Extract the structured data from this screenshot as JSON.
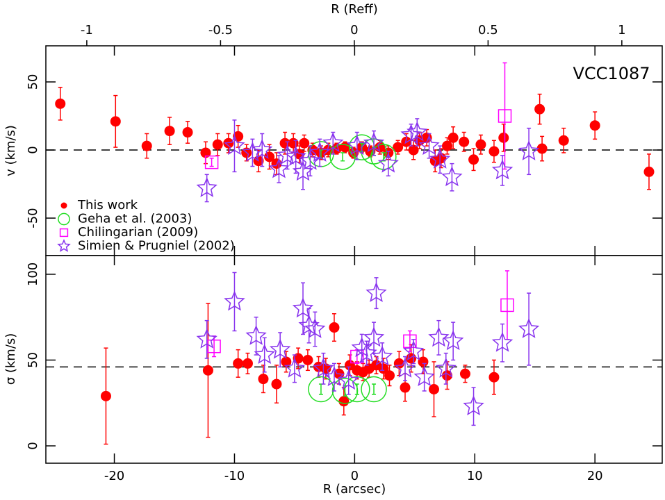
{
  "chart_data": [
    {
      "type": "scatter",
      "ylabel": "v (km/s)",
      "annotation": "VCC1087",
      "x2label": "R (Reff)",
      "x2lim": [
        -1.153,
        1.151
      ],
      "x2ticks": [
        -1,
        -0.5,
        0,
        0.5,
        1
      ],
      "xlim": [
        -25.7,
        25.6
      ],
      "ylim": [
        -77.5,
        76.5
      ],
      "yticks": [
        -50,
        0,
        50
      ],
      "hline": 0,
      "legend": "lower left",
      "series": [
        {
          "name": "This work",
          "color": "#ff0000",
          "marker": "filled-circle",
          "x": [
            -24.5,
            -19.9,
            -17.3,
            -15.4,
            -13.9,
            -12.4,
            -11.4,
            -10.5,
            -9.7,
            -9.0,
            -8.0,
            -7.1,
            -6.5,
            -5.8,
            -5.1,
            -4.6,
            -4.2,
            -3.5,
            -2.8,
            -2.2,
            -1.5,
            -0.8,
            -0.1,
            0.6,
            1.3,
            2.1,
            2.8,
            3.6,
            4.3,
            4.9,
            5.4,
            6.0,
            6.7,
            7.2,
            7.7,
            8.2,
            9.1,
            9.9,
            10.5,
            11.6,
            12.4,
            15.4,
            15.6,
            17.4,
            20.0,
            24.5
          ],
          "values": [
            34,
            21,
            3,
            14,
            13,
            -2,
            4,
            5,
            10,
            -2,
            -8,
            -5,
            -10,
            5,
            5,
            -3,
            5,
            0,
            -2,
            0,
            1,
            2,
            -2,
            2,
            -1,
            2,
            -2,
            2,
            6,
            0,
            7,
            9,
            -8,
            -6,
            3,
            9,
            6,
            -7,
            4,
            -1,
            9,
            30,
            1,
            7,
            18,
            -16
          ],
          "errors": [
            12,
            19,
            9,
            10,
            8,
            8,
            8,
            7,
            8,
            6,
            8,
            9,
            8,
            8,
            7,
            6,
            6,
            5,
            5,
            5,
            4,
            4,
            4,
            4,
            4,
            5,
            5,
            5,
            6,
            7,
            6,
            6,
            8,
            7,
            6,
            8,
            7,
            8,
            7,
            8,
            10,
            11,
            9,
            9,
            10,
            13
          ]
        },
        {
          "name": "Geha et al. (2003)",
          "color": "#22dd22",
          "marker": "open-circle",
          "x": [
            -2.8,
            -1.0,
            0.6,
            1.6,
            2.4
          ],
          "values": [
            -3,
            -5,
            2,
            -1,
            -5
          ],
          "errors": [
            3,
            3,
            3,
            3,
            3
          ]
        },
        {
          "name": "Chilingarian (2009)",
          "color": "#ff00ff",
          "marker": "open-square",
          "x": [
            -11.9,
            12.5
          ],
          "values": [
            -9,
            25
          ],
          "errors": [
            3,
            39
          ]
        },
        {
          "name": "Simien & Prugniel (2002)",
          "color": "#8833ee",
          "marker": "open-star",
          "x": [
            -12.3,
            -10.0,
            -8.5,
            -7.7,
            -6.3,
            -5.6,
            -4.9,
            -4.3,
            -3.7,
            -2.9,
            -1.8,
            0.2,
            1.6,
            2.8,
            4.7,
            5.2,
            6.2,
            7.1,
            8.1,
            12.3,
            14.5
          ],
          "values": [
            -28,
            3,
            -2,
            0,
            -14,
            -4,
            -5,
            -16,
            -8,
            -2,
            5,
            3,
            5,
            -10,
            11,
            13,
            3,
            -7,
            -20,
            -15,
            -1
          ],
          "errors": [
            10,
            19,
            10,
            12,
            10,
            10,
            12,
            13,
            11,
            10,
            8,
            10,
            9,
            9,
            8,
            10,
            9,
            10,
            10,
            11,
            17
          ]
        }
      ]
    },
    {
      "type": "scatter",
      "ylabel": "σ (km/s)",
      "xlabel": "R (arcsec)",
      "xlim": [
        -25.7,
        25.6
      ],
      "xticks": [
        -20,
        -10,
        0,
        10,
        20
      ],
      "ylim": [
        -10.1,
        110.9
      ],
      "yticks": [
        0,
        50,
        100
      ],
      "hline": 46,
      "series": [
        {
          "color": "#ff0000",
          "marker": "filled-circle",
          "x": [
            -20.7,
            -12.2,
            -9.7,
            -8.9,
            -7.6,
            -6.5,
            -5.7,
            -4.7,
            -3.9,
            -3.0,
            -2.4,
            -1.7,
            -1.3,
            -0.9,
            -0.4,
            0.2,
            0.7,
            1.2,
            1.8,
            2.4,
            2.9,
            3.7,
            4.2,
            4.7,
            5.7,
            6.6,
            7.7,
            9.2,
            11.6
          ],
          "values": [
            29,
            44,
            48,
            48,
            39,
            36,
            49,
            51,
            50,
            46,
            45,
            69,
            42,
            26,
            47,
            44,
            43,
            45,
            47,
            45,
            41,
            48,
            34,
            51,
            49,
            33,
            41,
            42,
            40
          ],
          "errors": [
            28,
            39,
            8,
            6,
            8,
            11,
            6,
            6,
            6,
            6,
            6,
            8,
            6,
            8,
            6,
            5,
            5,
            5,
            5,
            6,
            6,
            7,
            8,
            8,
            7,
            16,
            8,
            5,
            10
          ]
        },
        {
          "color": "#22dd22",
          "marker": "open-circle",
          "x": [
            -2.8,
            -0.8,
            0.2,
            1.6
          ],
          "values": [
            33,
            32,
            33,
            33
          ],
          "errors": [
            3,
            3,
            3,
            3
          ]
        },
        {
          "color": "#ff00ff",
          "marker": "open-square",
          "x": [
            -11.7,
            0.2,
            4.6,
            12.7
          ],
          "values": [
            58,
            52,
            61,
            82
          ],
          "errors": [
            6,
            4,
            6,
            20
          ]
        },
        {
          "color": "#8833ee",
          "marker": "open-star",
          "x": [
            -12.3,
            -10.0,
            -8.2,
            -7.5,
            -6.2,
            -5.0,
            -4.3,
            -3.8,
            -3.3,
            -2.6,
            -1.7,
            -0.5,
            0.6,
            1.0,
            1.6,
            1.8,
            2.3,
            4.2,
            4.9,
            5.8,
            7.0,
            7.6,
            8.2,
            9.9,
            12.3,
            14.5
          ],
          "values": [
            62,
            84,
            64,
            53,
            56,
            45,
            80,
            70,
            68,
            45,
            40,
            38,
            57,
            54,
            63,
            89,
            52,
            45,
            55,
            40,
            63,
            45,
            61,
            23,
            60,
            68
          ],
          "errors": [
            11,
            17,
            11,
            10,
            10,
            8,
            15,
            10,
            10,
            9,
            8,
            8,
            8,
            7,
            9,
            9,
            8,
            7,
            7,
            8,
            10,
            9,
            11,
            11,
            11,
            21
          ]
        }
      ]
    }
  ]
}
